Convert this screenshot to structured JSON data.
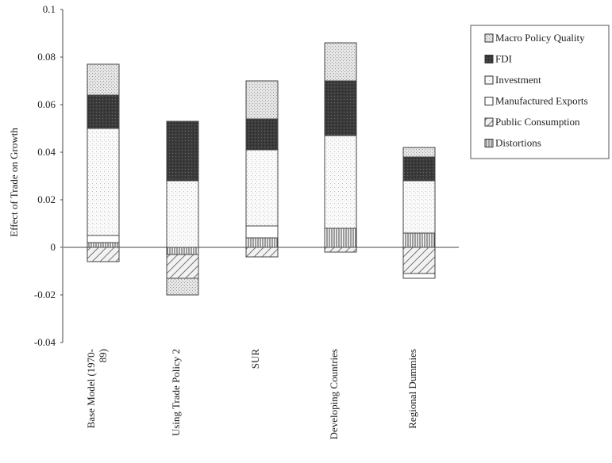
{
  "chart_data": {
    "type": "bar",
    "stacked": true,
    "title": "",
    "xlabel": "",
    "ylabel": "Effect of Trade on Growth",
    "ylim": [
      -0.04,
      0.1
    ],
    "yticks": [
      "0.1",
      "0.08",
      "0.06",
      "0.04",
      "0.02",
      "0",
      "-0.02",
      "-0.04"
    ],
    "grid": false,
    "legend_position": "right",
    "categories": [
      "Base Model (1970-89)",
      "Using Trade Policy 2",
      "SUR",
      "Developing Countries",
      "Regional Dummies"
    ],
    "series": [
      {
        "name": "Distortions",
        "values": [
          0.002,
          -0.003,
          0.004,
          0.008,
          0.006
        ]
      },
      {
        "name": "Public Consumption",
        "values": [
          -0.006,
          -0.01,
          -0.004,
          -0.002,
          -0.011
        ]
      },
      {
        "name": "Manufactured Exports",
        "values": [
          0.003,
          0.0,
          0.005,
          0.0,
          0.0
        ]
      },
      {
        "name": "Investment",
        "values": [
          0.045,
          0.028,
          0.032,
          0.039,
          0.022
        ]
      },
      {
        "name": "FDI",
        "values": [
          0.014,
          0.025,
          0.013,
          0.023,
          0.01
        ]
      },
      {
        "name": "Macro Policy Quality",
        "values": [
          0.013,
          -0.007,
          0.016,
          0.016,
          0.004
        ]
      }
    ],
    "extra_negative": [
      {
        "category": "Regional Dummies",
        "name": "Manufactured Exports",
        "value": -0.002
      }
    ],
    "legend": [
      "Macro Policy Quality",
      "FDI",
      "Investment",
      "Manufactured Exports",
      "Public Consumption",
      "Distortions"
    ]
  }
}
